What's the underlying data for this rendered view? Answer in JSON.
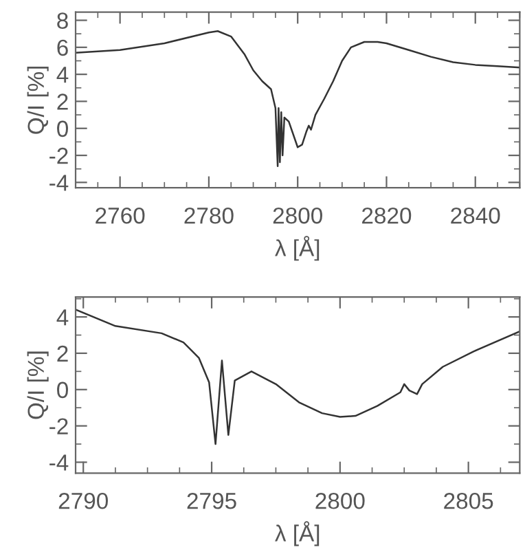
{
  "chart_data": [
    {
      "type": "line",
      "xlabel": "λ [Å]",
      "ylabel": "Q/I [%]",
      "xlim": [
        2750,
        2850
      ],
      "ylim": [
        -4.4,
        8.6
      ],
      "xticks": [
        2760,
        2780,
        2800,
        2820,
        2840
      ],
      "yticks": [
        -4,
        -2,
        0,
        2,
        4,
        6,
        8
      ],
      "grid": false,
      "legend": false,
      "series": [
        {
          "color": "#333333",
          "x": [
            2750,
            2760,
            2770,
            2780,
            2782,
            2785,
            2788,
            2790,
            2792,
            2794,
            2795,
            2795.5,
            2795.7,
            2796,
            2796.3,
            2796.6,
            2797,
            2798,
            2800,
            2801,
            2802,
            2802.5,
            2803,
            2804,
            2806,
            2808,
            2810,
            2812,
            2815,
            2818,
            2820,
            2825,
            2830,
            2835,
            2840,
            2845,
            2850
          ],
          "values": [
            5.6,
            5.8,
            6.3,
            7.1,
            7.2,
            6.8,
            5.5,
            4.3,
            3.5,
            2.9,
            1.5,
            -2.8,
            1.5,
            -2.5,
            1.2,
            -2.0,
            0.8,
            0.5,
            -1.4,
            -1.2,
            -0.2,
            0.2,
            -0.1,
            1.0,
            2.2,
            3.5,
            5.0,
            6.0,
            6.4,
            6.4,
            6.3,
            5.8,
            5.3,
            4.9,
            4.7,
            4.6,
            4.5
          ]
        }
      ]
    },
    {
      "type": "line",
      "xlabel": "λ [Å]",
      "ylabel": "Q/I [%]",
      "xlim": [
        2789.7,
        2807
      ],
      "ylim": [
        -4.6,
        5.1
      ],
      "xticks": [
        2790,
        2795,
        2800,
        2805
      ],
      "yticks": [
        -4,
        -2,
        0,
        2,
        4
      ],
      "grid": false,
      "legend": false,
      "series": [
        {
          "color": "#333333",
          "x": [
            2789.7,
            2791.25,
            2793.05,
            2793.9,
            2794.5,
            2794.9,
            2795.15,
            2795.4,
            2795.65,
            2795.9,
            2796.55,
            2797.5,
            2798.4,
            2799.3,
            2800.0,
            2800.6,
            2801.45,
            2802.35,
            2802.5,
            2802.7,
            2803.0,
            2803.2,
            2804.0,
            2805.2,
            2807
          ],
          "values": [
            4.4,
            3.5,
            3.1,
            2.6,
            1.75,
            0.4,
            -3.0,
            1.6,
            -2.5,
            0.5,
            1.0,
            0.3,
            -0.7,
            -1.3,
            -1.5,
            -1.45,
            -0.9,
            -0.15,
            0.3,
            -0.05,
            -0.25,
            0.3,
            1.25,
            2.1,
            3.2
          ]
        }
      ]
    }
  ]
}
